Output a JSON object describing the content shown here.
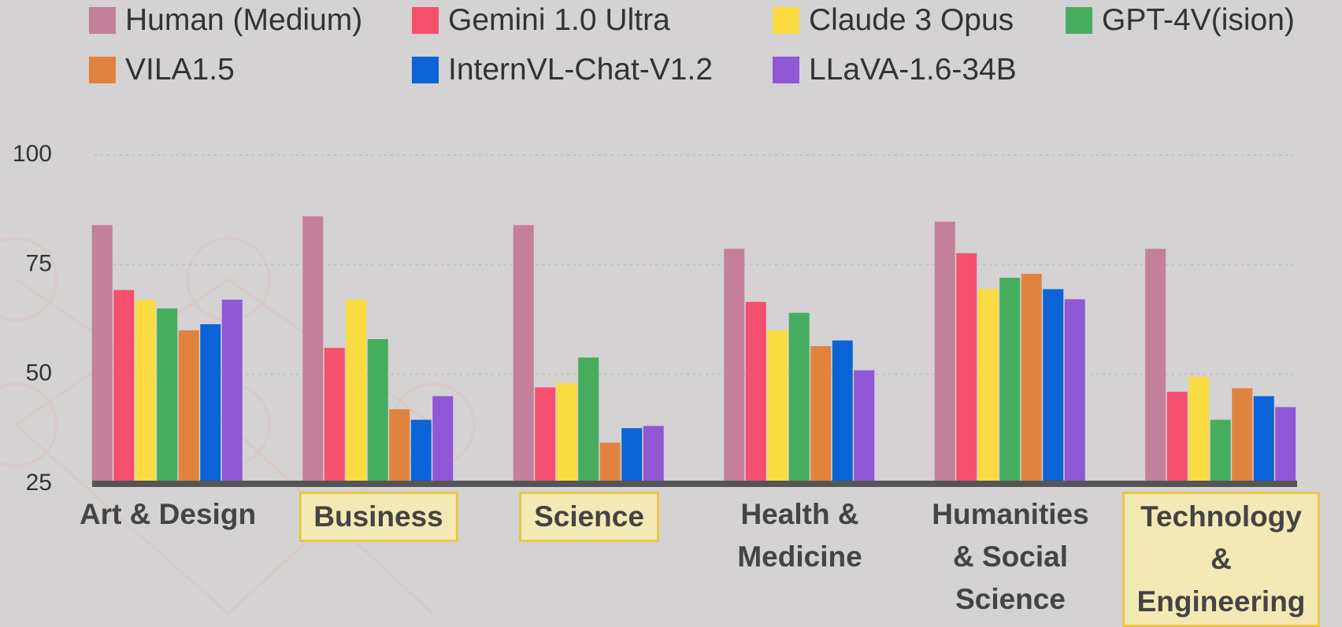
{
  "chart_data": {
    "type": "bar",
    "categories": [
      "Art & Design",
      "Business",
      "Science",
      "Health &\nMedicine",
      "Humanities\n& Social\nScience",
      "Technology &\nEngineering"
    ],
    "highlighted": [
      1,
      2,
      5
    ],
    "series": [
      {
        "name": "Human (Medium)",
        "color": "#c47f9b",
        "values": [
          84,
          86,
          84,
          78.6,
          84.8,
          78.6
        ]
      },
      {
        "name": "Gemini 1.0 Ultra",
        "color": "#f5506e",
        "values": [
          69.2,
          56,
          47,
          66.5,
          77.6,
          46
        ]
      },
      {
        "name": "Claude 3 Opus",
        "color": "#fadb42",
        "values": [
          67,
          67,
          48,
          60,
          69.4,
          49.4
        ]
      },
      {
        "name": "GPT-4V(ision)",
        "color": "#46ad5f",
        "values": [
          65,
          58,
          53.8,
          64,
          72,
          39.6
        ]
      },
      {
        "name": "VILA1.5",
        "color": "#e0833e",
        "values": [
          60,
          42,
          34.4,
          56.4,
          72.9,
          46.8
        ]
      },
      {
        "name": "InternVL-Chat-V1.2",
        "color": "#0a64d6",
        "values": [
          61.4,
          39.6,
          37.7,
          57.7,
          69.4,
          45
        ]
      },
      {
        "name": "LLaVA-1.6-34B",
        "color": "#9058d6",
        "values": [
          67,
          45,
          38.2,
          50.9,
          67.1,
          42.5
        ]
      }
    ],
    "ylim": [
      25,
      100
    ],
    "yticks": [
      25,
      50,
      75,
      100
    ],
    "grid": true
  }
}
